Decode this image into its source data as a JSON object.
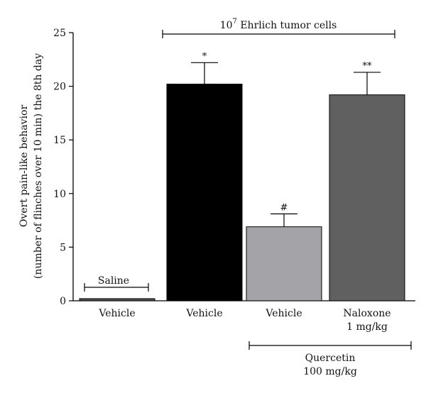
{
  "chart_data": {
    "type": "bar",
    "ylabel_line1": "Overt pain-like behavior",
    "ylabel_line2": "(number of flinches over 10 min) the 8th day",
    "ylim": [
      0,
      25
    ],
    "yticks": [
      "0",
      "5",
      "10",
      "15",
      "20",
      "25"
    ],
    "categories": [
      {
        "label": "Vehicle",
        "label2": ""
      },
      {
        "label": "Vehicle",
        "label2": ""
      },
      {
        "label": "Vehicle",
        "label2": ""
      },
      {
        "label": "Naloxone",
        "label2": "1 mg/kg"
      }
    ],
    "values": [
      0.2,
      20.2,
      6.9,
      19.2
    ],
    "errors": [
      0.1,
      2.0,
      1.2,
      2.1
    ],
    "colors": [
      "#555555",
      "#000000",
      "#a3a3a8",
      "#606060"
    ],
    "significance": [
      "",
      "*",
      "#",
      "**"
    ],
    "brackets": {
      "saline": "Saline",
      "tumor_base": "10",
      "tumor_exp": "7",
      "tumor_text": " Ehrlich tumor cells",
      "quercetin_line1": "Quercetin",
      "quercetin_line2": "100 mg/kg"
    }
  }
}
